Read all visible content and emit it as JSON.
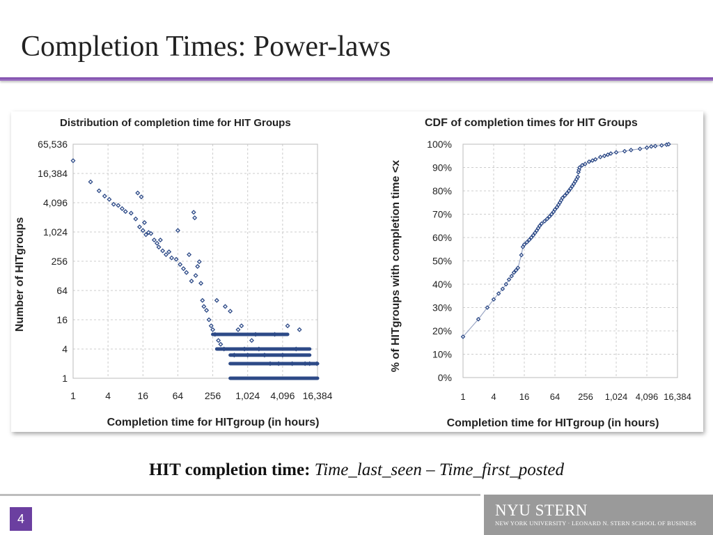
{
  "slide": {
    "title": "Completion Times: Power-laws",
    "caption_bold": "HIT completion time:",
    "caption_italic": "Time_last_seen – Time_first_posted",
    "page_number": "4",
    "logo_main": "NYU STERN",
    "logo_sub": "NEW YORK UNIVERSITY · LEONARD N. STERN SCHOOL OF BUSINESS"
  },
  "colors": {
    "accent": "#7a45a8",
    "marker": "#2d4a87",
    "grid": "#cccccc",
    "logo_bg": "#9a9a9a"
  },
  "chart_data": [
    {
      "type": "scatter",
      "title": "Distribution of completion time for HIT Groups",
      "xlabel": "Completion time for HITgroup (in hours)",
      "ylabel": "Number of HITgroups",
      "x_scale": "log2",
      "y_scale": "log2",
      "xlim": [
        1,
        16384
      ],
      "ylim": [
        1,
        65536
      ],
      "x_ticks": [
        "1",
        "4",
        "16",
        "64",
        "256",
        "1,024",
        "4,096",
        "16,384"
      ],
      "y_ticks": [
        "1",
        "4",
        "16",
        "64",
        "256",
        "1,024",
        "4,096",
        "16,384",
        "65,536"
      ],
      "grid": true,
      "marker": "diamond",
      "points": [
        [
          1,
          30000
        ],
        [
          2,
          11000
        ],
        [
          2.8,
          7200
        ],
        [
          3.5,
          5600
        ],
        [
          4.2,
          4800
        ],
        [
          5,
          3800
        ],
        [
          6,
          3600
        ],
        [
          7,
          3100
        ],
        [
          8,
          2700
        ],
        [
          10,
          2500
        ],
        [
          12,
          1900
        ],
        [
          13,
          6500
        ],
        [
          14,
          1300
        ],
        [
          15,
          5400
        ],
        [
          16,
          1100
        ],
        [
          17,
          1600
        ],
        [
          18,
          900
        ],
        [
          20,
          1000
        ],
        [
          22,
          950
        ],
        [
          25,
          700
        ],
        [
          28,
          600
        ],
        [
          30,
          500
        ],
        [
          32,
          700
        ],
        [
          35,
          420
        ],
        [
          40,
          350
        ],
        [
          45,
          400
        ],
        [
          50,
          300
        ],
        [
          60,
          280
        ],
        [
          64,
          1100
        ],
        [
          70,
          220
        ],
        [
          80,
          180
        ],
        [
          90,
          150
        ],
        [
          100,
          350
        ],
        [
          110,
          100
        ],
        [
          120,
          2600
        ],
        [
          125,
          2000
        ],
        [
          130,
          130
        ],
        [
          140,
          200
        ],
        [
          150,
          250
        ],
        [
          160,
          90
        ],
        [
          170,
          40
        ],
        [
          180,
          30
        ],
        [
          200,
          25
        ],
        [
          220,
          16
        ],
        [
          240,
          12
        ],
        [
          256,
          10
        ],
        [
          280,
          8
        ],
        [
          300,
          40
        ],
        [
          320,
          6
        ],
        [
          350,
          5
        ],
        [
          400,
          4
        ],
        [
          420,
          30
        ],
        [
          512,
          24
        ],
        [
          600,
          3
        ],
        [
          700,
          10
        ],
        [
          800,
          12
        ],
        [
          900,
          4
        ],
        [
          1024,
          3
        ],
        [
          1200,
          6
        ],
        [
          1400,
          8
        ],
        [
          1600,
          4
        ],
        [
          2000,
          3
        ],
        [
          2500,
          2
        ],
        [
          3000,
          8
        ],
        [
          3500,
          2
        ],
        [
          4096,
          3
        ],
        [
          5000,
          12
        ],
        [
          6000,
          2
        ],
        [
          7000,
          4
        ],
        [
          8000,
          10
        ],
        [
          10000,
          2
        ],
        [
          12000,
          2
        ],
        [
          16000,
          2
        ]
      ]
    },
    {
      "type": "line",
      "title": "CDF of completion times for HIT Groups",
      "xlabel": "Completion time for HITgroup (in hours)",
      "ylabel": "% of HITgroups with completion time <x",
      "x_scale": "log2",
      "xlim": [
        1,
        16384
      ],
      "ylim": [
        0,
        100
      ],
      "x_ticks": [
        "1",
        "4",
        "16",
        "64",
        "256",
        "1,024",
        "4,096",
        "16,384"
      ],
      "y_ticks": [
        "0%",
        "10%",
        "20%",
        "30%",
        "40%",
        "50%",
        "60%",
        "70%",
        "80%",
        "90%",
        "100%"
      ],
      "grid": true,
      "marker": "diamond",
      "points": [
        [
          1,
          17.5
        ],
        [
          2,
          25
        ],
        [
          3,
          30
        ],
        [
          4,
          33.5
        ],
        [
          5,
          36
        ],
        [
          6,
          38
        ],
        [
          7,
          40
        ],
        [
          8,
          42
        ],
        [
          9,
          43.5
        ],
        [
          10,
          45
        ],
        [
          11,
          46
        ],
        [
          12,
          47
        ],
        [
          14,
          52.5
        ],
        [
          15,
          56
        ],
        [
          16,
          57
        ],
        [
          18,
          58
        ],
        [
          20,
          59
        ],
        [
          22,
          60
        ],
        [
          24,
          61
        ],
        [
          26,
          62
        ],
        [
          28,
          63
        ],
        [
          30,
          64
        ],
        [
          32,
          65
        ],
        [
          35,
          66
        ],
        [
          40,
          67
        ],
        [
          45,
          68
        ],
        [
          50,
          69
        ],
        [
          55,
          70
        ],
        [
          60,
          71
        ],
        [
          64,
          72
        ],
        [
          70,
          73
        ],
        [
          75,
          74
        ],
        [
          80,
          75
        ],
        [
          85,
          76
        ],
        [
          90,
          77
        ],
        [
          100,
          78
        ],
        [
          110,
          79
        ],
        [
          120,
          80
        ],
        [
          130,
          81
        ],
        [
          140,
          82
        ],
        [
          150,
          83
        ],
        [
          160,
          84
        ],
        [
          170,
          85
        ],
        [
          180,
          86
        ],
        [
          185,
          88
        ],
        [
          190,
          89
        ],
        [
          195,
          90
        ],
        [
          220,
          91
        ],
        [
          250,
          91.5
        ],
        [
          300,
          92.5
        ],
        [
          350,
          93
        ],
        [
          400,
          93.5
        ],
        [
          500,
          94.5
        ],
        [
          600,
          95
        ],
        [
          700,
          95.5
        ],
        [
          800,
          96
        ],
        [
          1024,
          96.5
        ],
        [
          1500,
          97
        ],
        [
          2000,
          97.5
        ],
        [
          3000,
          98
        ],
        [
          4096,
          98.5
        ],
        [
          5000,
          99
        ],
        [
          6000,
          99.2
        ],
        [
          8000,
          99.5
        ],
        [
          10000,
          99.8
        ],
        [
          11000,
          100
        ]
      ]
    }
  ]
}
